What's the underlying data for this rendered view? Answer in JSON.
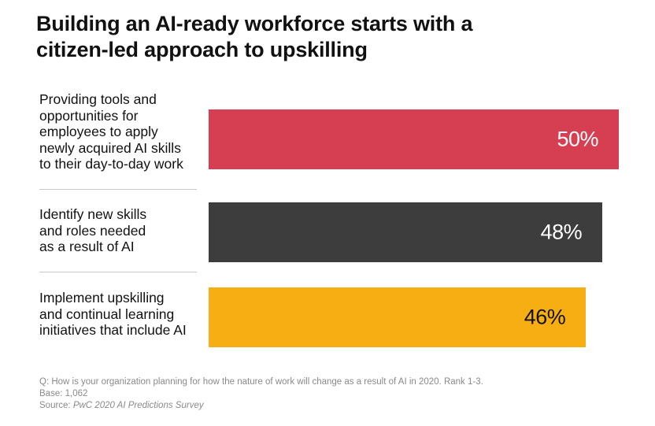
{
  "title": {
    "line1": "Building an AI-ready workforce starts with a",
    "line2": "citizen-led approach to upskilling"
  },
  "chart_data": {
    "type": "bar",
    "orientation": "horizontal",
    "categories": [
      [
        "Providing tools and",
        "opportunities for",
        "employees to apply",
        "newly acquired AI skills",
        "to their day-to-day work"
      ],
      [
        "Identify new skills",
        "and roles needed",
        "as a result of AI"
      ],
      [
        "Implement upskilling",
        "and continual learning",
        "initiatives that include AI"
      ]
    ],
    "values": [
      50,
      48,
      46
    ],
    "value_labels": [
      "50%",
      "48%",
      "46%"
    ],
    "colors": [
      "#d63f52",
      "#3d3d3d",
      "#f6ae12"
    ],
    "value_label_colors": [
      "#ffffff",
      "#ffffff",
      "#111111"
    ],
    "xlim": [
      0,
      50
    ],
    "grid": false,
    "legend": "none"
  },
  "footnote": {
    "question": "Q: How is your organization planning for how the nature of work will change as a result of AI in 2020. Rank 1-3.",
    "base": "Base: 1,062",
    "source_prefix": "Source: ",
    "source_name": "PwC 2020 AI Predictions Survey"
  }
}
